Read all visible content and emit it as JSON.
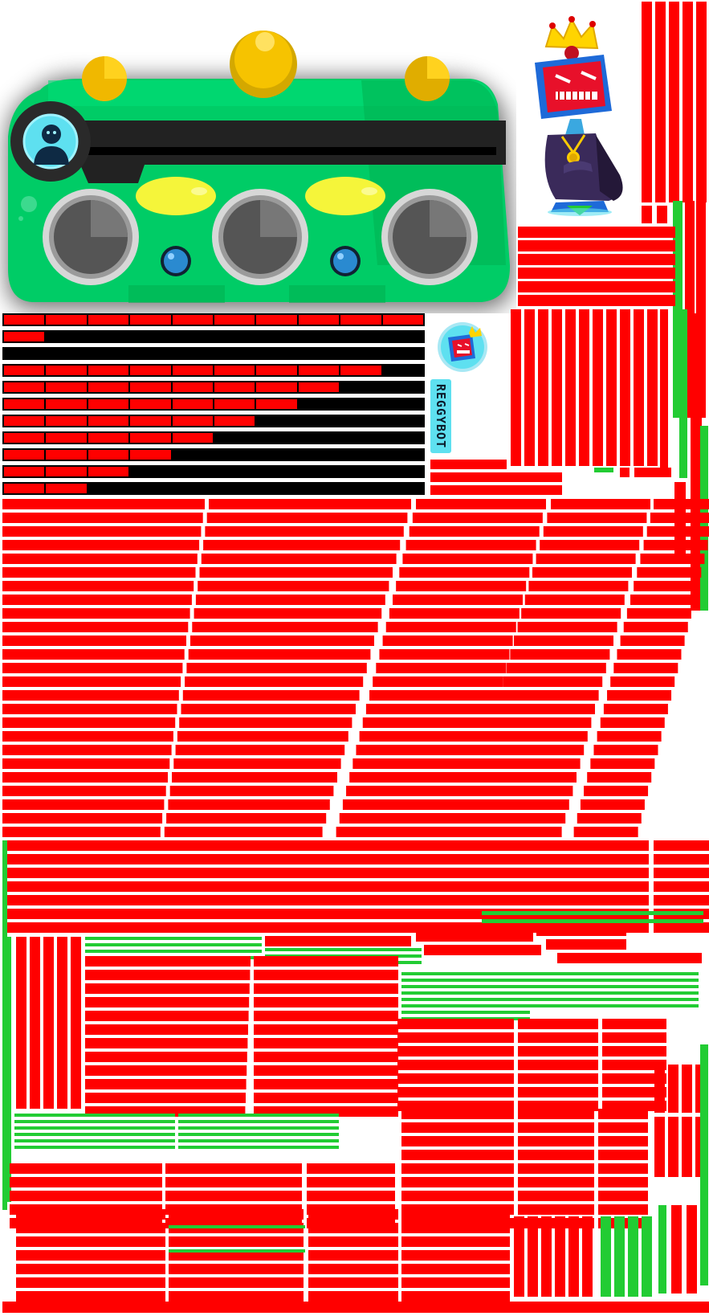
{
  "sheet": {
    "background": "#ffffff",
    "accent_red": "#ff0000",
    "accent_green": "#22cc33"
  },
  "character": {
    "name": "REGGYBOT",
    "nameplate_color": "#5ee0f0",
    "portrait_icon": "reggybot-portrait-icon",
    "boss_icon": "reggybot-boss-icon",
    "machine_icon": "boombox-machine-icon",
    "player_icon": "player-silhouette-icon"
  },
  "health_bars": [
    {
      "segments_filled": 10,
      "segments_total": 10
    },
    {
      "segments_filled": 1,
      "segments_total": 10
    },
    {
      "segments_filled": 0,
      "segments_total": 10
    },
    {
      "segments_filled": 9,
      "segments_total": 10
    },
    {
      "segments_filled": 8,
      "segments_total": 10
    },
    {
      "segments_filled": 7,
      "segments_total": 10
    },
    {
      "segments_filled": 6,
      "segments_total": 10
    },
    {
      "segments_filled": 5,
      "segments_total": 10
    },
    {
      "segments_filled": 4,
      "segments_total": 10
    },
    {
      "segments_filled": 3,
      "segments_total": 10
    },
    {
      "segments_filled": 2,
      "segments_total": 10
    }
  ]
}
